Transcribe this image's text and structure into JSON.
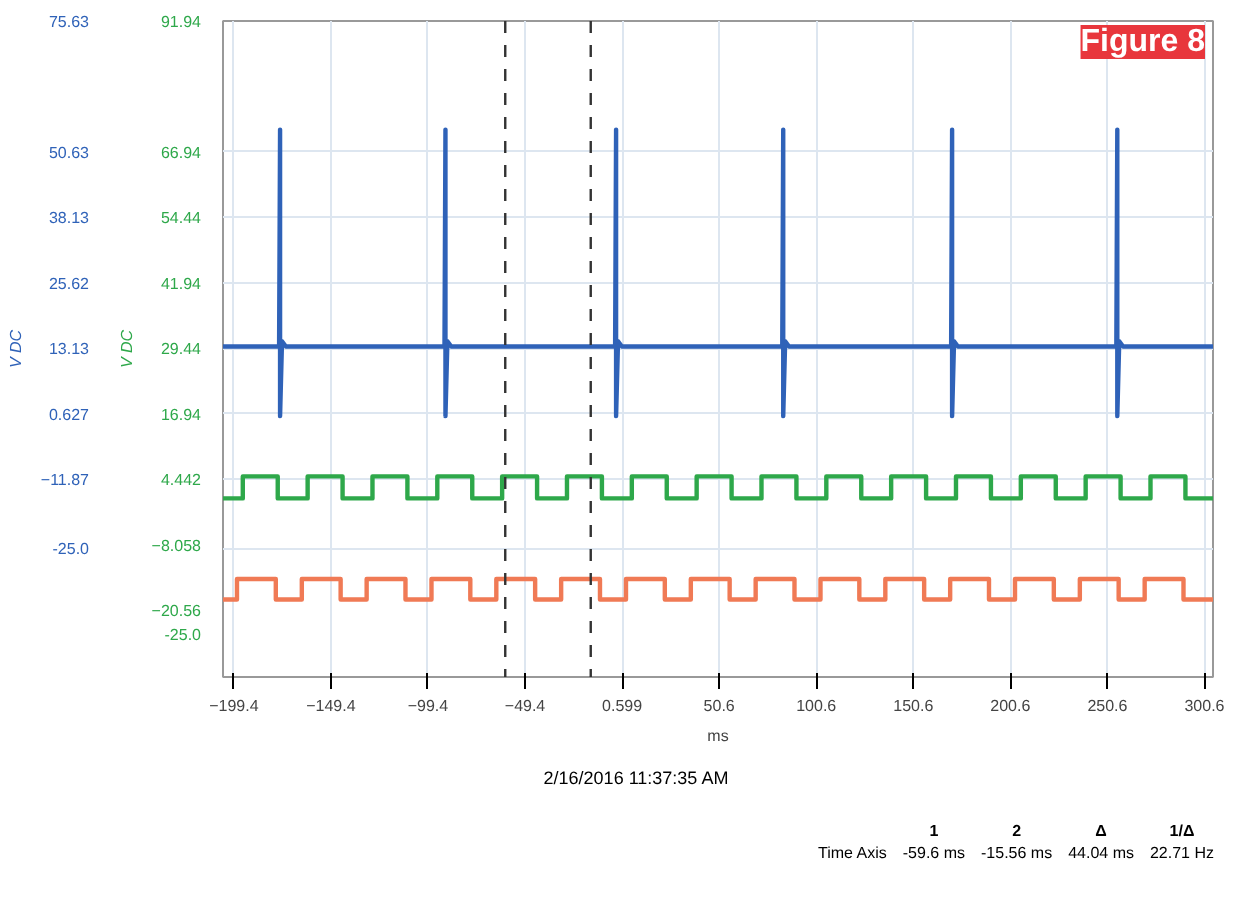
{
  "chart_data": {
    "type": "line",
    "xlabel": "ms",
    "ylabel": "V DC",
    "y2label": "V DC",
    "xlim": [
      -205,
      305
    ],
    "xticks": [
      -199.4,
      -149.4,
      -99.4,
      -49.4,
      0.599,
      50.6,
      100.6,
      150.6,
      200.6,
      250.6,
      300.6
    ],
    "ylim": [
      -49.6,
      75.63
    ],
    "yticks": [
      75.63,
      50.63,
      38.13,
      25.62,
      13.13,
      0.627,
      -11.87,
      {
        "value": -25.0,
        "label": "-25.0"
      }
    ],
    "y2lim": [
      -33.3,
      91.94
    ],
    "y2ticks": [
      91.94,
      66.94,
      54.44,
      41.94,
      29.44,
      16.94,
      4.442,
      -8.058,
      -20.56,
      {
        "value": -25.0,
        "label": "-25.0"
      }
    ],
    "grid": true,
    "line_style": "solid",
    "marker": "none",
    "ref_lines": [
      {
        "axis": "x",
        "value": -59.6,
        "color": "#333333",
        "line_style": "dashed"
      },
      {
        "axis": "x",
        "value": -15.56,
        "color": "#333333",
        "line_style": "dashed"
      }
    ],
    "annotations": [
      "Figure 8",
      "2/16/2016 11:37:35 AM",
      "1",
      "2",
      "Δ",
      "1/Δ",
      "Time Axis",
      "-59.6 ms",
      "-15.56 ms",
      "44.04 ms",
      "22.71 Hz"
    ],
    "series": [
      {
        "color": "#2f62b8",
        "x": [
          -205,
          -176.1,
          -175.6,
          -175.6,
          -174.6,
          -172.6,
          -90.9,
          -90.4,
          -90.4,
          -89.4,
          -87.4,
          -3.0,
          -2.5,
          -2.5,
          -1.5,
          0.5,
          83.1,
          83.6,
          83.6,
          84.6,
          86.6,
          170.1,
          170.6,
          170.6,
          171.6,
          173.6,
          255.2,
          255.7,
          255.7,
          256.7,
          258.7,
          305
        ],
        "values": [
          13.5,
          13.5,
          54.9,
          0.2,
          14.5,
          13.5,
          13.5,
          54.9,
          0.2,
          14.5,
          13.5,
          13.5,
          54.9,
          0.2,
          14.5,
          13.5,
          13.5,
          54.9,
          0.2,
          14.5,
          13.5,
          13.5,
          54.9,
          0.2,
          14.5,
          13.5,
          13.5,
          54.9,
          0.2,
          14.5,
          13.5,
          13.5
        ]
      },
      {
        "color": "#2ea84a",
        "axis": "y2",
        "x": [
          -205,
          -194.8,
          -194.8,
          -176.8,
          -176.8,
          -161.4,
          -161.4,
          -143.4,
          -143.4,
          -128.0,
          -128.0,
          -110.0,
          -110.0,
          -94.6,
          -94.6,
          -76.6,
          -76.6,
          -61.2,
          -61.2,
          -43.2,
          -43.2,
          -27.8,
          -27.8,
          -9.8,
          -9.8,
          5.6,
          5.6,
          23.6,
          23.6,
          39.0,
          39.0,
          57.0,
          57.0,
          72.4,
          72.4,
          90.4,
          90.4,
          105.8,
          105.8,
          123.8,
          123.8,
          139.2,
          139.2,
          157.2,
          157.2,
          172.6,
          172.6,
          190.6,
          190.6,
          206.0,
          206.0,
          224.0,
          224.0,
          239.4,
          239.4,
          257.4,
          257.4,
          272.8,
          272.8,
          290.8,
          290.8,
          305
        ],
        "values": [
          0.8,
          0.8,
          5.0,
          5.0,
          0.8,
          0.8,
          5.0,
          5.0,
          0.8,
          0.8,
          5.0,
          5.0,
          0.8,
          0.8,
          5.0,
          5.0,
          0.8,
          0.8,
          5.0,
          5.0,
          0.8,
          0.8,
          5.0,
          5.0,
          0.8,
          0.8,
          5.0,
          5.0,
          0.8,
          0.8,
          5.0,
          5.0,
          0.8,
          0.8,
          5.0,
          5.0,
          0.8,
          0.8,
          5.0,
          5.0,
          0.8,
          0.8,
          5.0,
          5.0,
          0.8,
          0.8,
          5.0,
          5.0,
          0.8,
          0.8,
          5.0,
          5.0,
          0.8,
          0.8,
          5.0,
          5.0,
          0.8,
          0.8,
          5.0,
          5.0,
          0.8,
          0.8
        ]
      },
      {
        "color": "#f07a55",
        "x": [
          -205,
          -197.8,
          -197.8,
          -177.8,
          -177.8,
          -164.4,
          -164.4,
          -144.4,
          -144.4,
          -131.0,
          -131.0,
          -111.0,
          -111.0,
          -97.6,
          -97.6,
          -77.6,
          -77.6,
          -64.2,
          -64.2,
          -44.2,
          -44.2,
          -30.8,
          -30.8,
          -10.8,
          -10.8,
          2.6,
          2.6,
          22.6,
          22.6,
          36.0,
          36.0,
          56.0,
          56.0,
          69.4,
          69.4,
          89.4,
          89.4,
          102.8,
          102.8,
          122.8,
          122.8,
          136.2,
          136.2,
          156.2,
          156.2,
          169.6,
          169.6,
          189.6,
          189.6,
          203.0,
          203.0,
          223.0,
          223.0,
          236.4,
          236.4,
          256.4,
          256.4,
          269.8,
          269.8,
          289.8,
          289.8,
          305
        ],
        "values": [
          -34.8,
          -34.8,
          -30.9,
          -30.9,
          -34.8,
          -34.8,
          -30.9,
          -30.9,
          -34.8,
          -34.8,
          -30.9,
          -30.9,
          -34.8,
          -34.8,
          -30.9,
          -30.9,
          -34.8,
          -34.8,
          -30.9,
          -30.9,
          -34.8,
          -34.8,
          -30.9,
          -30.9,
          -34.8,
          -34.8,
          -30.9,
          -30.9,
          -34.8,
          -34.8,
          -30.9,
          -30.9,
          -34.8,
          -34.8,
          -30.9,
          -30.9,
          -34.8,
          -34.8,
          -30.9,
          -30.9,
          -34.8,
          -34.8,
          -30.9,
          -30.9,
          -34.8,
          -34.8,
          -30.9,
          -30.9,
          -34.8,
          -34.8,
          -30.9,
          -30.9,
          -34.8,
          -34.8,
          -30.9,
          -30.9,
          -34.8,
          -34.8,
          -30.9,
          -30.9,
          -34.8,
          -34.8
        ]
      }
    ]
  }
}
